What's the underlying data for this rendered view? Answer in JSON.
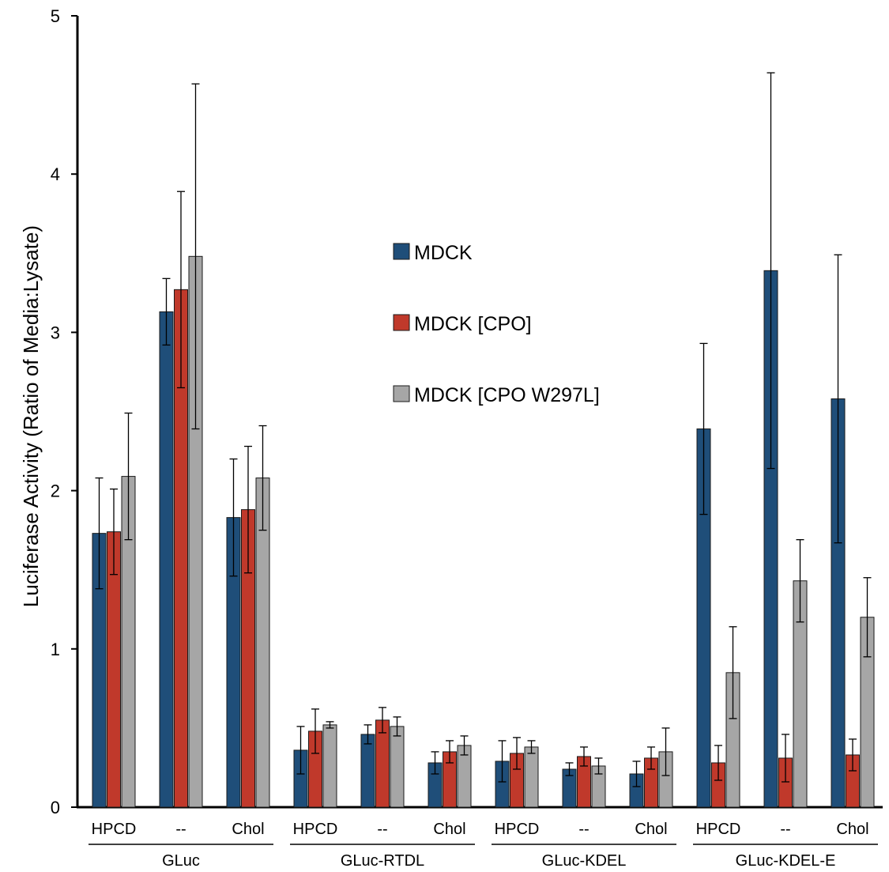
{
  "chart_data": {
    "type": "bar",
    "ylabel": "Luciferase Activity (Ratio of Media:Lysate)",
    "ylim": [
      0,
      5
    ],
    "yticks": [
      "0",
      "1",
      "2",
      "3",
      "4",
      "5"
    ],
    "grid": false,
    "legend_position": "center",
    "groups": [
      {
        "label": "GLuc",
        "categories": [
          "HPCD",
          "--",
          "Chol"
        ]
      },
      {
        "label": "GLuc-RTDL",
        "categories": [
          "HPCD",
          "--",
          "Chol"
        ]
      },
      {
        "label": "GLuc-KDEL",
        "categories": [
          "HPCD",
          "--",
          "Chol"
        ]
      },
      {
        "label": "GLuc-KDEL-E",
        "categories": [
          "HPCD",
          "--",
          "Chol"
        ]
      }
    ],
    "series": [
      {
        "name": "MDCK",
        "color": "#1f4e79",
        "values": [
          1.73,
          3.13,
          1.83,
          0.36,
          0.46,
          0.28,
          0.29,
          0.24,
          0.21,
          2.39,
          3.39,
          2.58
        ],
        "errors": [
          0.35,
          0.21,
          0.37,
          0.15,
          0.06,
          0.07,
          0.13,
          0.04,
          0.08,
          0.54,
          1.25,
          0.91
        ]
      },
      {
        "name": "MDCK [CPO]",
        "color": "#c0392b",
        "values": [
          1.74,
          3.27,
          1.88,
          0.48,
          0.55,
          0.35,
          0.34,
          0.32,
          0.31,
          0.28,
          0.31,
          0.33
        ],
        "errors": [
          0.27,
          0.62,
          0.4,
          0.14,
          0.08,
          0.07,
          0.1,
          0.06,
          0.07,
          0.11,
          0.15,
          0.1
        ]
      },
      {
        "name": "MDCK [CPO W297L]",
        "color": "#a6a6a6",
        "values": [
          2.09,
          3.48,
          2.08,
          0.52,
          0.51,
          0.39,
          0.38,
          0.26,
          0.35,
          0.85,
          1.43,
          1.2
        ],
        "errors": [
          0.4,
          1.09,
          0.33,
          0.02,
          0.06,
          0.06,
          0.04,
          0.05,
          0.15,
          0.29,
          0.26,
          0.25
        ]
      }
    ]
  }
}
